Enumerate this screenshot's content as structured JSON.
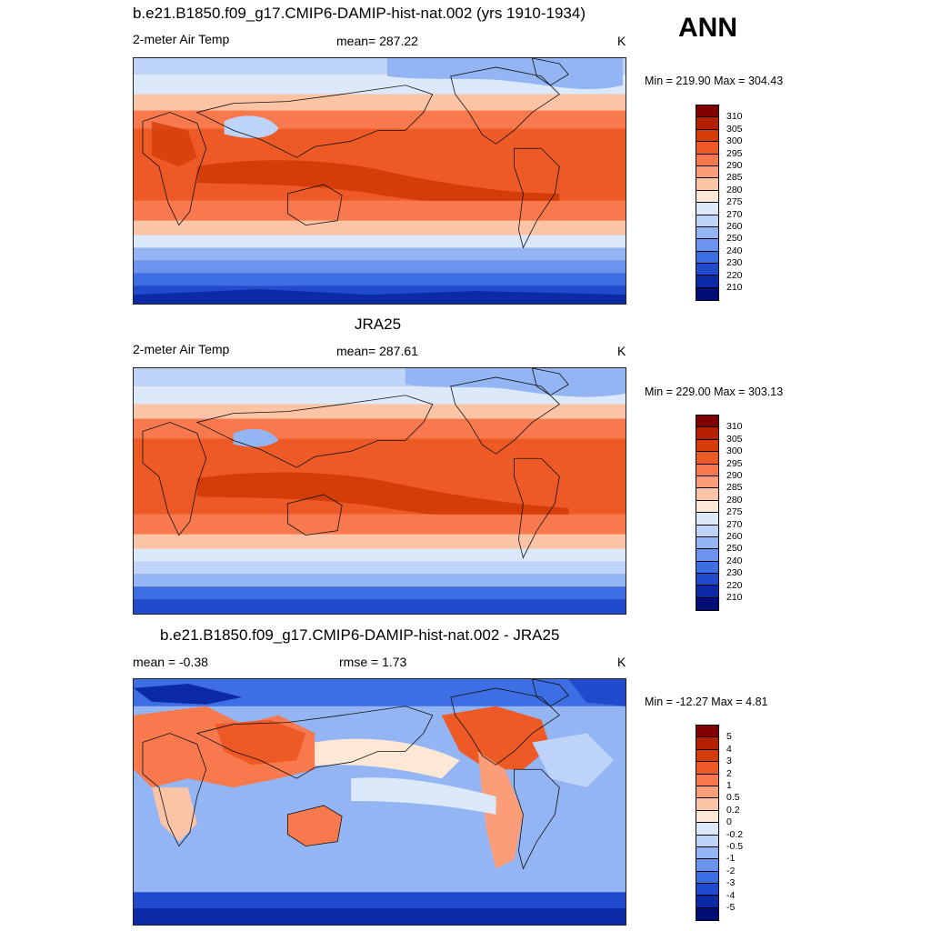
{
  "season": "ANN",
  "panels": [
    {
      "title": "b.e21.B1850.f09_g17.CMIP6-DAMIP-hist-nat.002 (yrs 1910-1934)",
      "left_label": "2-meter Air Temp",
      "center_label": "mean= 287.22",
      "right_label": "K",
      "minmax": "Min = 219.90 Max = 304.43",
      "colorbar": {
        "ticks": [
          "310",
          "305",
          "300",
          "295",
          "290",
          "285",
          "280",
          "275",
          "270",
          "260",
          "250",
          "240",
          "230",
          "220",
          "210"
        ],
        "colors": [
          "#800000",
          "#b42000",
          "#d43c08",
          "#ee5a26",
          "#f9794e",
          "#fb9d78",
          "#fcc4a6",
          "#fde8d6",
          "#dce9fb",
          "#bdd3f8",
          "#93b5f4",
          "#6a94ed",
          "#3e6ee4",
          "#1f4bcc",
          "#0d2aa6",
          "#020e78"
        ]
      }
    },
    {
      "title": "JRA25",
      "left_label": "2-meter Air Temp",
      "center_label": "mean= 287.61",
      "right_label": "K",
      "minmax": "Min = 229.00 Max = 303.13",
      "colorbar": {
        "ticks": [
          "310",
          "305",
          "300",
          "295",
          "290",
          "285",
          "280",
          "275",
          "270",
          "260",
          "250",
          "240",
          "230",
          "220",
          "210"
        ],
        "colors": [
          "#800000",
          "#b42000",
          "#d43c08",
          "#ee5a26",
          "#f9794e",
          "#fb9d78",
          "#fcc4a6",
          "#fde8d6",
          "#dce9fb",
          "#bdd3f8",
          "#93b5f4",
          "#6a94ed",
          "#3e6ee4",
          "#1f4bcc",
          "#0d2aa6",
          "#020e78"
        ]
      }
    },
    {
      "title": "b.e21.B1850.f09_g17.CMIP6-DAMIP-hist-nat.002 - JRA25",
      "left_label": "mean =  -0.38",
      "center_label": "rmse =   1.73",
      "right_label": "K",
      "minmax": "Min = -12.27 Max =   4.81",
      "colorbar": {
        "ticks": [
          "5",
          "4",
          "3",
          "2",
          "1",
          "0.5",
          "0.2",
          "0",
          "-0.2",
          "-0.5",
          "-1",
          "-2",
          "-3",
          "-4",
          "-5"
        ],
        "colors": [
          "#800000",
          "#b42000",
          "#d43c08",
          "#ee5a26",
          "#f9794e",
          "#fb9d78",
          "#fcc4a6",
          "#fde8d6",
          "#dce9fb",
          "#bdd3f8",
          "#93b5f4",
          "#6a94ed",
          "#3e6ee4",
          "#1f4bcc",
          "#0d2aa6",
          "#020e78"
        ]
      }
    }
  ]
}
